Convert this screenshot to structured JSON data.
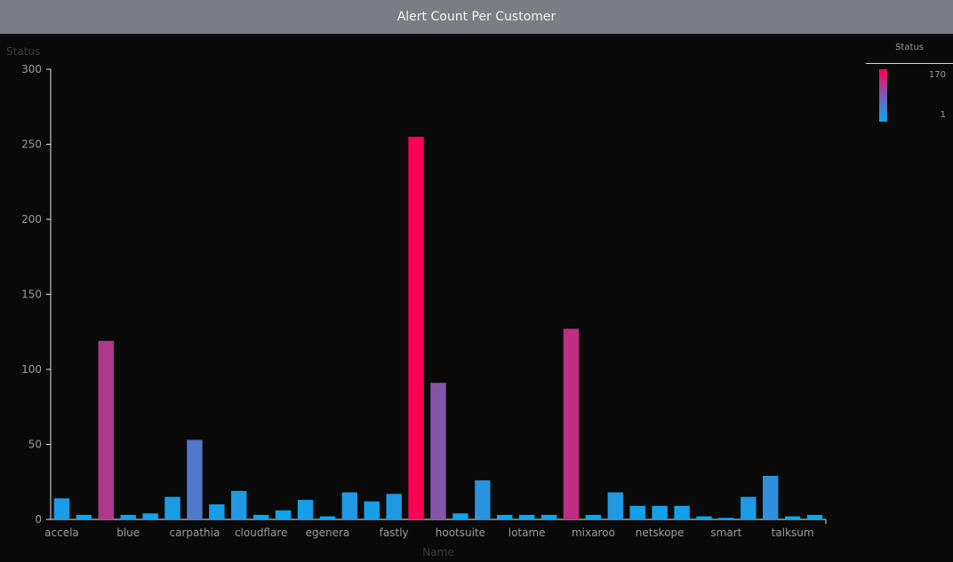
{
  "header": {
    "title": "Alert Count Per Customer"
  },
  "legend": {
    "title": "Status",
    "max_label": "170",
    "min_label": "1"
  },
  "colors": {
    "low": "#0aa8f0",
    "mid": "#7b5cb0",
    "high": "#ff0055",
    "background": "#0a0a0a",
    "titlebar": "#7a7d85"
  },
  "chart_data": {
    "type": "bar",
    "ylabel": "Status",
    "xlabel": "Name",
    "ylim": [
      0,
      300
    ],
    "yticks": [
      0,
      50,
      100,
      150,
      200,
      250,
      300
    ],
    "x_tick_labels": [
      "accela",
      "blue",
      "carpathia",
      "cloudflare",
      "egenera",
      "fastly",
      "hootsuite",
      "lotame",
      "mixaroo",
      "netskope",
      "smart",
      "talksum"
    ],
    "x_tick_label_bar_index": [
      0.5,
      3.5,
      6.5,
      9.5,
      12.5,
      15.5,
      18.5,
      21.5,
      24.5,
      27.5,
      30.5,
      33.5
    ],
    "color_scale": {
      "min": 1,
      "max": 170
    },
    "values": [
      14,
      3,
      119,
      3,
      4,
      15,
      53,
      10,
      19,
      3,
      6,
      13,
      2,
      18,
      12,
      17,
      255,
      91,
      4,
      26,
      3,
      3,
      3,
      127,
      3,
      18,
      9,
      9,
      9,
      2,
      1,
      15,
      29,
      2,
      3
    ]
  }
}
